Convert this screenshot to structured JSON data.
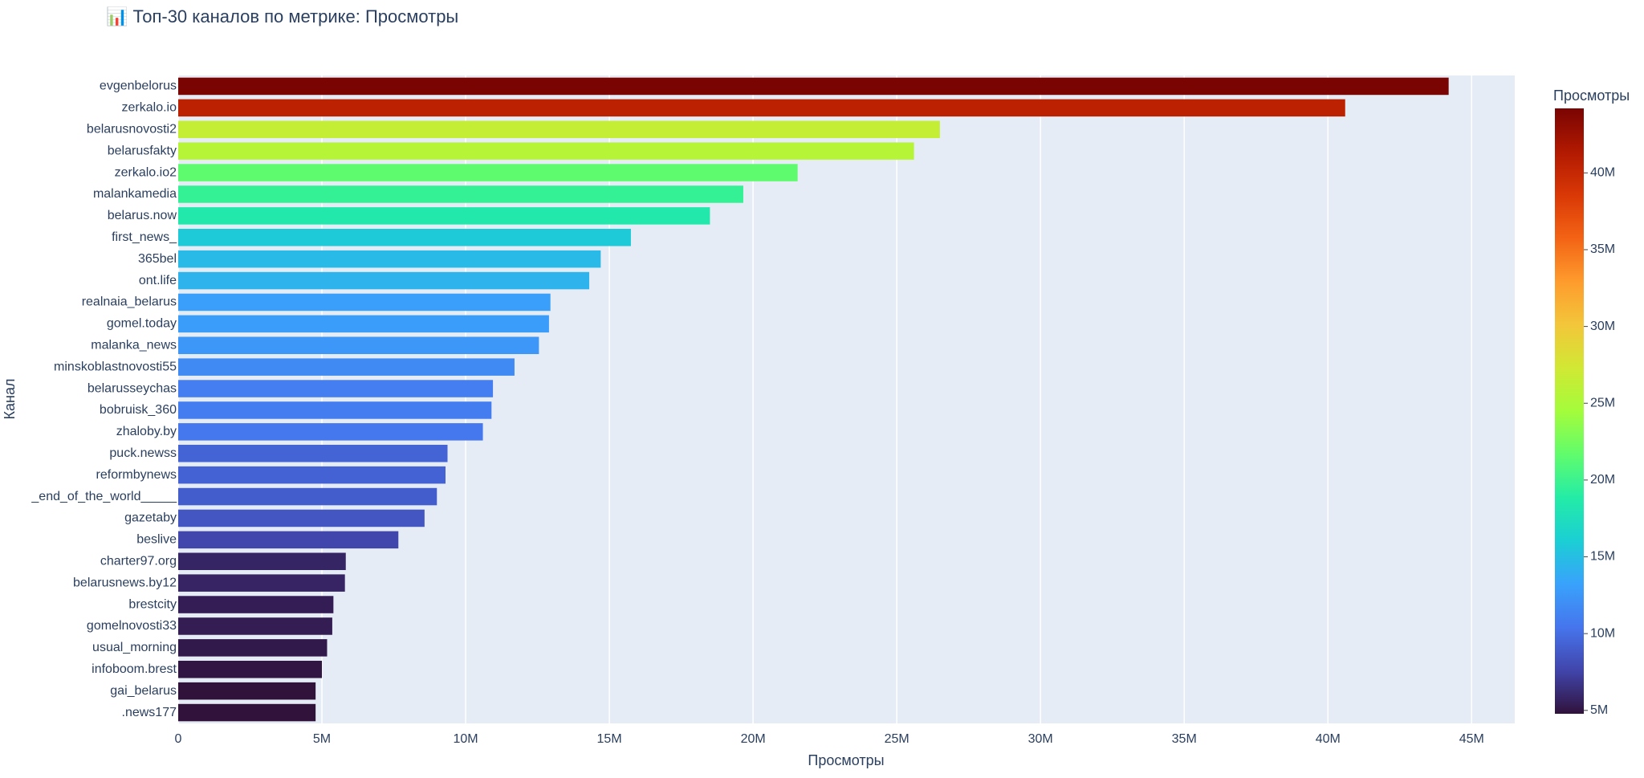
{
  "chart_data": {
    "type": "bar",
    "orientation": "horizontal",
    "title": "📊 Топ-30 каналов по метрике: Просмотры",
    "xlabel": "Просмотры",
    "ylabel": "Канал",
    "categories": [
      "evgenbelorus",
      "zerkalo.io",
      "belarusnovosti2",
      "belarusfakty",
      "zerkalo.io2",
      "malankamedia",
      "belarus.now",
      "first_news_",
      "365bel",
      "ont.life",
      "realnaia_belarus",
      "gomel.today",
      "malanka_news",
      "minskoblastnovosti55",
      "belarusseychas",
      "bobruisk_360",
      "zhaloby.by",
      "puck.newss",
      "reformbynews",
      "_end_of_the_world_____",
      "gazetaby",
      "beslive",
      "charter97.org",
      "belarusnews.by12",
      "brestcity",
      "gomelnovosti33",
      "usual_morning",
      "infoboom.brest",
      "gai_belarus",
      ".news177"
    ],
    "values": [
      44200000,
      40600000,
      26500000,
      25600000,
      21550000,
      19660000,
      18500000,
      15750000,
      14700000,
      14300000,
      12950000,
      12900000,
      12550000,
      11700000,
      10950000,
      10900000,
      10600000,
      9370000,
      9300000,
      9000000,
      8570000,
      7660000,
      5830000,
      5800000,
      5400000,
      5360000,
      5180000,
      5000000,
      4780000,
      4780000
    ],
    "xlim": [
      0,
      46500000
    ],
    "xticks": [
      {
        "value": 0,
        "label": "0"
      },
      {
        "value": 5000000,
        "label": "5M"
      },
      {
        "value": 10000000,
        "label": "10M"
      },
      {
        "value": 15000000,
        "label": "15M"
      },
      {
        "value": 20000000,
        "label": "20M"
      },
      {
        "value": 25000000,
        "label": "25M"
      },
      {
        "value": 30000000,
        "label": "30M"
      },
      {
        "value": 35000000,
        "label": "35M"
      },
      {
        "value": 40000000,
        "label": "40M"
      },
      {
        "value": 45000000,
        "label": "45M"
      }
    ],
    "grid": true,
    "colorscale": [
      "#30123b",
      "#4145ab",
      "#4675ed",
      "#39a2fc",
      "#1bcfd4",
      "#24eca6",
      "#61fc6c",
      "#a4fc3b",
      "#d1e834",
      "#f3c63a",
      "#fe9b2d",
      "#f36315",
      "#d93806",
      "#b11901",
      "#7a0402"
    ],
    "colorbar": {
      "title": "Просмотры",
      "ticks": [
        {
          "value": 5000000,
          "label": "5M"
        },
        {
          "value": 10000000,
          "label": "10M"
        },
        {
          "value": 15000000,
          "label": "15M"
        },
        {
          "value": 20000000,
          "label": "20M"
        },
        {
          "value": 25000000,
          "label": "25M"
        },
        {
          "value": 30000000,
          "label": "30M"
        },
        {
          "value": 35000000,
          "label": "35M"
        },
        {
          "value": 40000000,
          "label": "40M"
        }
      ]
    }
  }
}
